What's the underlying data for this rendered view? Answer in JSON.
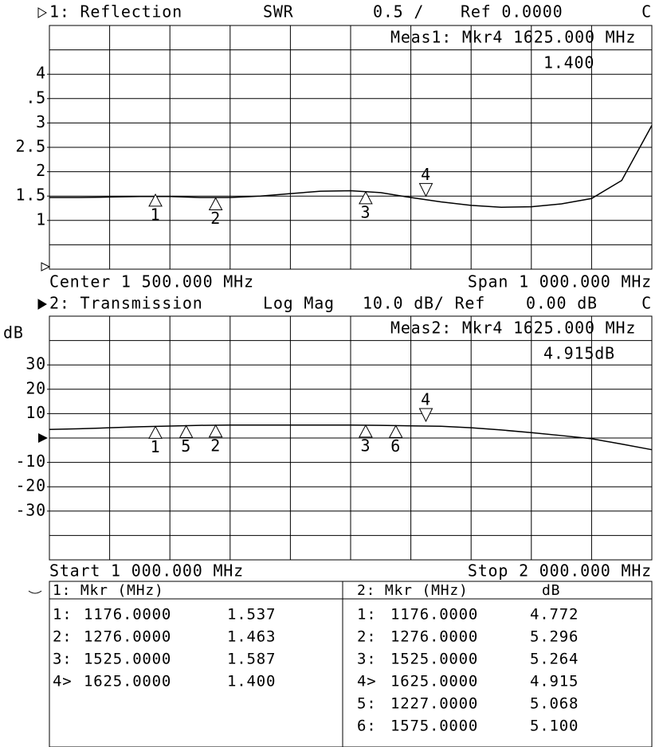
{
  "chart_data": [
    {
      "type": "line",
      "title": "1: Reflection",
      "format": "SWR",
      "scale": "0.5 /",
      "reference": "Ref 0.0000",
      "channel_flag": "C",
      "meas_label": "Meas1: Mkr4 1625.000 MHz",
      "meas_value": "1.400",
      "footer_left": "Center 1 500.000 MHz",
      "footer_right": "Span 1 000.000 MHz",
      "xlim": [
        1000,
        2000
      ],
      "ylim": [
        0,
        5
      ],
      "yticks": [
        4,
        {
          "value": 3.5,
          "label": ".5"
        },
        3,
        2.5,
        2,
        1.5,
        1
      ],
      "x": [
        1000,
        1050,
        1100,
        1150,
        1200,
        1250,
        1300,
        1350,
        1400,
        1450,
        1500,
        1550,
        1600,
        1650,
        1700,
        1750,
        1800,
        1850,
        1900,
        1950,
        2000
      ],
      "series": [
        {
          "color": "#000000",
          "values": [
            1.47,
            1.47,
            1.48,
            1.49,
            1.49,
            1.47,
            1.47,
            1.5,
            1.55,
            1.6,
            1.61,
            1.57,
            1.47,
            1.38,
            1.31,
            1.27,
            1.28,
            1.34,
            1.45,
            1.82,
            2.95
          ]
        }
      ],
      "markers": [
        {
          "label": "1",
          "x": 1176,
          "y": 1.537
        },
        {
          "label": "2",
          "x": 1276,
          "y": 1.463
        },
        {
          "label": "3",
          "x": 1525,
          "y": 1.587
        },
        {
          "label": "4",
          "x": 1625,
          "y": 1.4
        }
      ],
      "active_marker": 4,
      "grid": true
    },
    {
      "type": "line",
      "title": "2: Transmission",
      "format": "Log Mag",
      "scale": "10.0 dB/ Ref",
      "reference": "0.00 dB",
      "channel_flag": "C",
      "y_label": "dB",
      "meas_label": "Meas2: Mkr4 1625.000 MHz",
      "meas_value": "4.915dB",
      "footer_left": "Start 1 000.000 MHz",
      "footer_right": "Stop 2 000.000 MHz",
      "xlim": [
        1000,
        2000
      ],
      "ylim": [
        -50,
        50
      ],
      "yticks": [
        30,
        20,
        10,
        -10,
        -20,
        -30
      ],
      "x": [
        1000,
        1050,
        1100,
        1150,
        1200,
        1250,
        1300,
        1350,
        1400,
        1450,
        1500,
        1550,
        1600,
        1650,
        1700,
        1750,
        1800,
        1850,
        1900,
        1950,
        2000
      ],
      "series": [
        {
          "color": "#000000",
          "values": [
            3.5,
            3.8,
            4.2,
            4.6,
            4.9,
            5.2,
            5.3,
            5.3,
            5.3,
            5.3,
            5.3,
            5.2,
            5.0,
            4.8,
            4.2,
            3.3,
            2.2,
            1.0,
            -0.3,
            -2.5,
            -4.8
          ]
        }
      ],
      "markers": [
        {
          "label": "1",
          "x": 1176,
          "y": 4.772
        },
        {
          "label": "2",
          "x": 1276,
          "y": 5.296
        },
        {
          "label": "3",
          "x": 1525,
          "y": 5.264
        },
        {
          "label": "4",
          "x": 1625,
          "y": 4.915
        },
        {
          "label": "5",
          "x": 1227,
          "y": 5.068
        },
        {
          "label": "6",
          "x": 1575,
          "y": 5.1
        }
      ],
      "active_marker": 4,
      "grid": true
    }
  ],
  "marker_tables": [
    {
      "header": [
        "1: Mkr (MHz)"
      ],
      "rows": [
        [
          "1:",
          "1176.0000",
          "1.537"
        ],
        [
          "2:",
          "1276.0000",
          "1.463"
        ],
        [
          "3:",
          "1525.0000",
          "1.587"
        ],
        [
          "4>",
          "1625.0000",
          "1.400"
        ]
      ]
    },
    {
      "header": [
        "2: Mkr (MHz)",
        "dB"
      ],
      "rows": [
        [
          "1:",
          "1176.0000",
          "4.772"
        ],
        [
          "2:",
          "1276.0000",
          "5.296"
        ],
        [
          "3:",
          "1525.0000",
          "5.264"
        ],
        [
          "4>",
          "1625.0000",
          "4.915"
        ],
        [
          "5:",
          "1227.0000",
          "5.068"
        ],
        [
          "6:",
          "1575.0000",
          "5.100"
        ]
      ]
    }
  ]
}
